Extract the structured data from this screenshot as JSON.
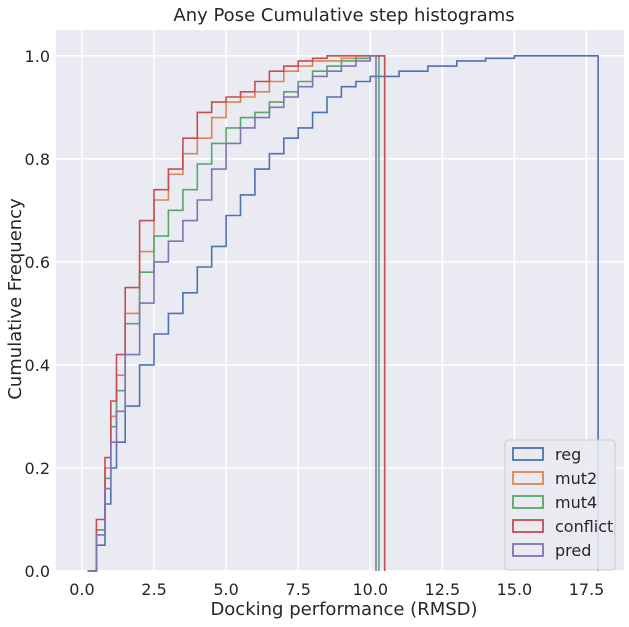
{
  "chart_data": {
    "type": "line",
    "subtype": "cumulative-step-histogram",
    "title": "Any Pose Cumulative step histograms",
    "xlabel": "Docking performance (RMSD)",
    "ylabel": "Cumulative Frequency",
    "xlim": [
      -0.9,
      18.8
    ],
    "ylim": [
      0.0,
      1.05
    ],
    "xticks": [
      0.0,
      2.5,
      5.0,
      7.5,
      10.0,
      12.5,
      15.0,
      17.5
    ],
    "xtick_labels": [
      "0.0",
      "2.5",
      "5.0",
      "7.5",
      "10.0",
      "12.5",
      "15.0",
      "17.5"
    ],
    "yticks": [
      0.0,
      0.2,
      0.4,
      0.6,
      0.8,
      1.0
    ],
    "ytick_labels": [
      "0.0",
      "0.2",
      "0.4",
      "0.6",
      "0.8",
      "1.0"
    ],
    "grid": true,
    "background": "#eaeaf2",
    "legend_position": "lower-right",
    "series": [
      {
        "name": "reg",
        "color": "#4c72b0",
        "x": [
          0.2,
          0.5,
          0.8,
          1.0,
          1.2,
          1.5,
          2.0,
          2.5,
          3.0,
          3.5,
          4.0,
          4.5,
          5.0,
          5.5,
          6.0,
          6.5,
          7.0,
          7.5,
          8.0,
          8.5,
          9.0,
          9.5,
          10.0,
          11.0,
          12.0,
          13.0,
          14.0,
          15.0,
          15.5,
          17.9
        ],
        "y": [
          0.0,
          0.05,
          0.13,
          0.2,
          0.25,
          0.32,
          0.4,
          0.46,
          0.5,
          0.54,
          0.59,
          0.63,
          0.69,
          0.73,
          0.78,
          0.81,
          0.84,
          0.86,
          0.89,
          0.92,
          0.94,
          0.95,
          0.96,
          0.97,
          0.98,
          0.99,
          0.995,
          1.0,
          1.0,
          1.0
        ]
      },
      {
        "name": "mut2",
        "color": "#dd8452",
        "x": [
          0.2,
          0.5,
          0.8,
          1.0,
          1.2,
          1.5,
          2.0,
          2.5,
          3.0,
          3.5,
          4.0,
          4.5,
          5.0,
          5.5,
          6.0,
          6.5,
          7.0,
          7.5,
          8.0,
          8.5,
          9.0,
          9.5,
          10.0,
          10.5
        ],
        "y": [
          0.0,
          0.08,
          0.2,
          0.3,
          0.38,
          0.5,
          0.62,
          0.72,
          0.77,
          0.81,
          0.84,
          0.88,
          0.91,
          0.92,
          0.93,
          0.95,
          0.97,
          0.98,
          0.99,
          0.99,
          0.995,
          1.0,
          1.0,
          1.0
        ]
      },
      {
        "name": "mut4",
        "color": "#55a868",
        "x": [
          0.2,
          0.5,
          0.8,
          1.0,
          1.2,
          1.5,
          2.0,
          2.5,
          3.0,
          3.5,
          4.0,
          4.5,
          5.0,
          5.5,
          6.0,
          6.5,
          7.0,
          7.5,
          8.0,
          8.5,
          9.0,
          9.5,
          10.0,
          10.3
        ],
        "y": [
          0.0,
          0.08,
          0.18,
          0.28,
          0.35,
          0.48,
          0.58,
          0.65,
          0.7,
          0.74,
          0.79,
          0.83,
          0.86,
          0.88,
          0.89,
          0.91,
          0.93,
          0.95,
          0.97,
          0.98,
          0.99,
          0.995,
          1.0,
          1.0
        ]
      },
      {
        "name": "conflict",
        "color": "#c44e52",
        "x": [
          0.2,
          0.5,
          0.8,
          1.0,
          1.2,
          1.5,
          2.0,
          2.5,
          3.0,
          3.5,
          4.0,
          4.5,
          5.0,
          5.5,
          6.0,
          6.5,
          7.0,
          7.5,
          8.0,
          8.5,
          9.0,
          10.0,
          10.5
        ],
        "y": [
          0.0,
          0.1,
          0.22,
          0.33,
          0.42,
          0.55,
          0.68,
          0.74,
          0.78,
          0.84,
          0.89,
          0.91,
          0.92,
          0.93,
          0.95,
          0.97,
          0.98,
          0.99,
          0.995,
          1.0,
          1.0,
          1.0,
          1.0
        ]
      },
      {
        "name": "pred",
        "color": "#8172b3",
        "x": [
          0.2,
          0.5,
          0.8,
          1.0,
          1.2,
          1.5,
          2.0,
          2.5,
          3.0,
          3.5,
          4.0,
          4.5,
          5.0,
          5.5,
          6.0,
          6.5,
          7.0,
          7.5,
          8.0,
          8.5,
          9.0,
          9.5,
          10.0,
          10.2
        ],
        "y": [
          0.0,
          0.07,
          0.16,
          0.25,
          0.31,
          0.42,
          0.52,
          0.6,
          0.64,
          0.68,
          0.72,
          0.78,
          0.83,
          0.86,
          0.88,
          0.9,
          0.92,
          0.94,
          0.96,
          0.97,
          0.98,
          0.99,
          1.0,
          1.0
        ]
      }
    ]
  }
}
